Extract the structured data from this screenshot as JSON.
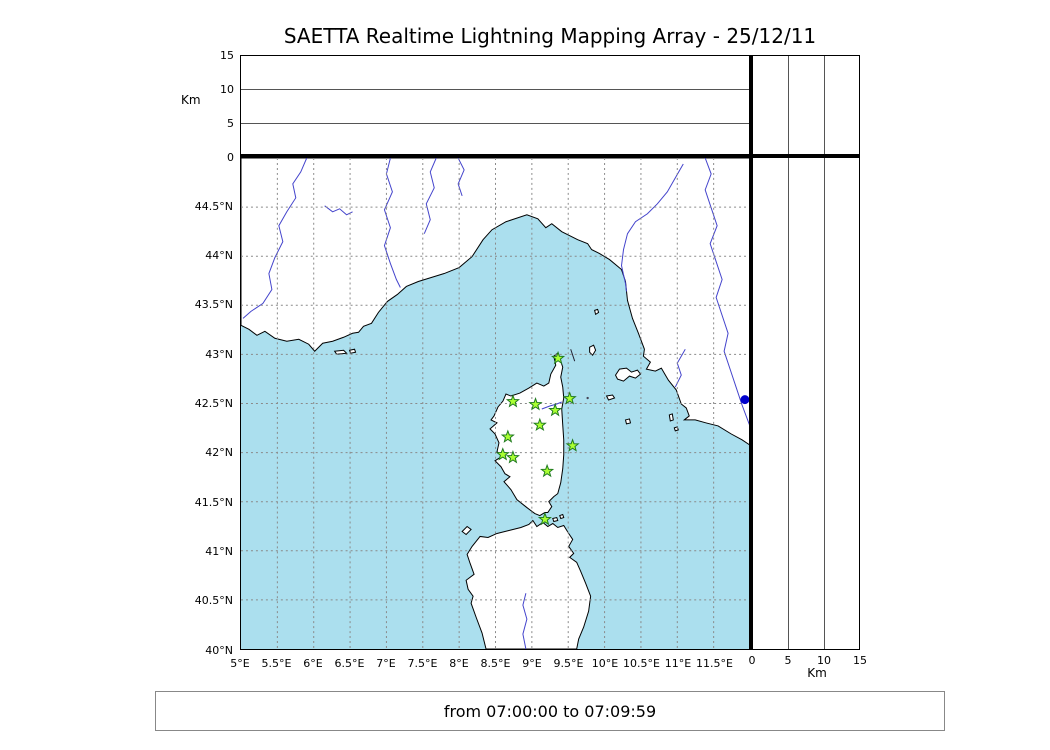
{
  "title": "SAETTA Realtime Lightning Mapping Array - 25/12/11",
  "footer": {
    "time_range": "from 07:00:00 to 07:09:59"
  },
  "axes": {
    "km_label_top": "Km",
    "km_label_right": "Km",
    "alt_gridlines_km": [
      5,
      10
    ],
    "alt_ticks_top": [
      {
        "label": "15",
        "km": 15
      },
      {
        "label": "10",
        "km": 10
      },
      {
        "label": "5",
        "km": 5
      },
      {
        "label": "0",
        "km": 0
      }
    ],
    "alt_ticks_right": [
      {
        "label": "0",
        "km": 0
      },
      {
        "label": "5",
        "km": 5
      },
      {
        "label": "10",
        "km": 10
      },
      {
        "label": "15",
        "km": 15
      }
    ],
    "lat_ticks": [
      {
        "label": "44.5°N",
        "deg": 44.5
      },
      {
        "label": "44°N",
        "deg": 44
      },
      {
        "label": "43.5°N",
        "deg": 43.5
      },
      {
        "label": "43°N",
        "deg": 43
      },
      {
        "label": "42.5°N",
        "deg": 42.5
      },
      {
        "label": "42°N",
        "deg": 42
      },
      {
        "label": "41.5°N",
        "deg": 41.5
      },
      {
        "label": "41°N",
        "deg": 41
      },
      {
        "label": "40.5°N",
        "deg": 40.5
      },
      {
        "label": "40°N",
        "deg": 40
      }
    ],
    "lon_ticks": [
      {
        "label": "5°E",
        "deg": 5
      },
      {
        "label": "5.5°E",
        "deg": 5.5
      },
      {
        "label": "6°E",
        "deg": 6
      },
      {
        "label": "6.5°E",
        "deg": 6.5
      },
      {
        "label": "7°E",
        "deg": 7
      },
      {
        "label": "7.5°E",
        "deg": 7.5
      },
      {
        "label": "8°E",
        "deg": 8
      },
      {
        "label": "8.5°E",
        "deg": 8.5
      },
      {
        "label": "9°E",
        "deg": 9
      },
      {
        "label": "9.5°E",
        "deg": 9.5
      },
      {
        "label": "10°E",
        "deg": 10
      },
      {
        "label": "10.5°E",
        "deg": 10.5
      },
      {
        "label": "11°E",
        "deg": 11
      },
      {
        "label": "11.5°E",
        "deg": 11.5
      }
    ]
  },
  "chart_data": {
    "type": "scatter",
    "title": "SAETTA Realtime Lightning Mapping Array - 25/12/11",
    "time_window": "from 07:00:00 to 07:09:59",
    "map_extent": {
      "lon_min": 5.0,
      "lon_max": 12.0,
      "lat_min": 40.0,
      "lat_max": 45.0
    },
    "altitude_axis_km": {
      "min": 0,
      "max": 15,
      "ticks": [
        0,
        5,
        10,
        15
      ],
      "gridlines": [
        5,
        10
      ]
    },
    "grid": "dashed every 0.5 degree",
    "panels": {
      "top": "altitude vs longitude",
      "right": "altitude vs latitude",
      "main": "plan view map"
    },
    "lightning_points": [],
    "stations_lon_lat": [
      [
        9.36,
        42.96
      ],
      [
        8.74,
        42.52
      ],
      [
        9.05,
        42.49
      ],
      [
        9.32,
        42.43
      ],
      [
        9.52,
        42.55
      ],
      [
        9.11,
        42.28
      ],
      [
        8.67,
        42.16
      ],
      [
        8.6,
        41.98
      ],
      [
        8.74,
        41.95
      ],
      [
        9.56,
        42.07
      ],
      [
        9.21,
        41.81
      ],
      [
        9.18,
        41.32
      ]
    ],
    "lake_marker_lon_lat": [
      11.93,
      42.54
    ],
    "colors": {
      "sea": "#abdfee",
      "land": "#ffffff",
      "coast": "#000000",
      "river": "#4444cc",
      "station_fill": "#aaff32",
      "station_edge": "#1f7a1f",
      "lake": "#0000cd",
      "grid": "#8a8a8a"
    }
  }
}
